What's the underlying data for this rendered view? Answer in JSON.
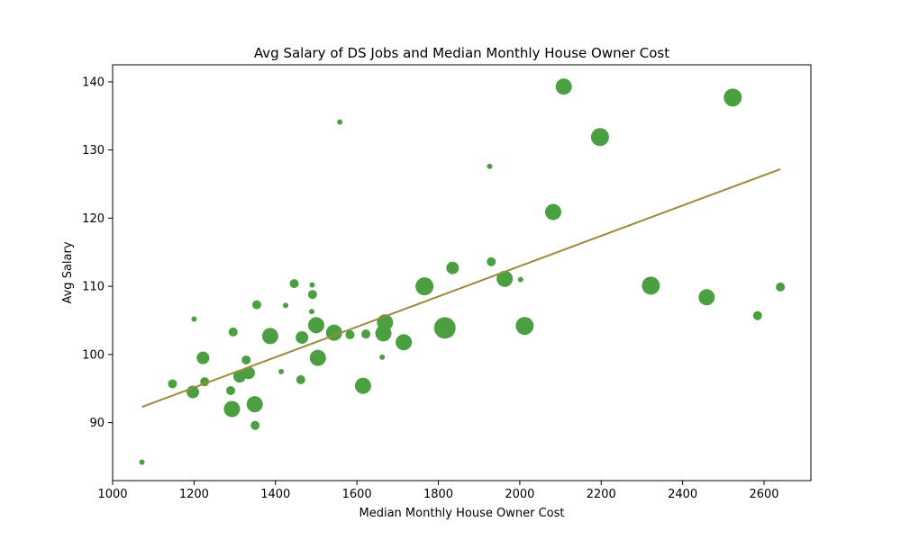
{
  "chart_data": {
    "type": "scatter",
    "title": "Avg Salary of DS Jobs and Median Monthly House Owner Cost",
    "xlabel": "Median Monthly House Owner Cost",
    "ylabel": "Avg Salary",
    "xlim": [
      1000,
      2715
    ],
    "ylim": [
      81.5,
      142.5
    ],
    "xticks": [
      "1000",
      "1200",
      "1400",
      "1600",
      "1800",
      "2000",
      "2200",
      "2400",
      "2600"
    ],
    "yticks": [
      "90",
      "100",
      "110",
      "120",
      "130",
      "140"
    ],
    "grid": false,
    "colors": {
      "points": "#4c9f41",
      "trendline": "#9b8a3c"
    },
    "points": [
      {
        "x": 1072,
        "y": 84.2,
        "size": "xs"
      },
      {
        "x": 1147,
        "y": 95.7,
        "size": "s"
      },
      {
        "x": 1197,
        "y": 94.5,
        "size": "m"
      },
      {
        "x": 1200,
        "y": 105.2,
        "size": "xs"
      },
      {
        "x": 1222,
        "y": 99.5,
        "size": "m"
      },
      {
        "x": 1226,
        "y": 96.0,
        "size": "s"
      },
      {
        "x": 1290,
        "y": 94.7,
        "size": "s"
      },
      {
        "x": 1293,
        "y": 92.0,
        "size": "l"
      },
      {
        "x": 1296,
        "y": 103.3,
        "size": "s"
      },
      {
        "x": 1312,
        "y": 96.8,
        "size": "m"
      },
      {
        "x": 1328,
        "y": 99.2,
        "size": "s"
      },
      {
        "x": 1334,
        "y": 97.3,
        "size": "m"
      },
      {
        "x": 1349,
        "y": 92.7,
        "size": "l"
      },
      {
        "x": 1350,
        "y": 89.6,
        "size": "s"
      },
      {
        "x": 1354,
        "y": 107.3,
        "size": "s"
      },
      {
        "x": 1387,
        "y": 102.7,
        "size": "l"
      },
      {
        "x": 1414,
        "y": 97.5,
        "size": "xs"
      },
      {
        "x": 1425,
        "y": 107.2,
        "size": "xs"
      },
      {
        "x": 1446,
        "y": 110.4,
        "size": "s"
      },
      {
        "x": 1462,
        "y": 96.3,
        "size": "s"
      },
      {
        "x": 1465,
        "y": 102.5,
        "size": "m"
      },
      {
        "x": 1489,
        "y": 106.3,
        "size": "xs"
      },
      {
        "x": 1490,
        "y": 110.2,
        "size": "xs"
      },
      {
        "x": 1491,
        "y": 108.8,
        "size": "s"
      },
      {
        "x": 1500,
        "y": 104.3,
        "size": "l"
      },
      {
        "x": 1504,
        "y": 99.5,
        "size": "l"
      },
      {
        "x": 1544,
        "y": 103.2,
        "size": "l"
      },
      {
        "x": 1558,
        "y": 134.1,
        "size": "xs"
      },
      {
        "x": 1583,
        "y": 102.9,
        "size": "s"
      },
      {
        "x": 1615,
        "y": 95.4,
        "size": "l"
      },
      {
        "x": 1622,
        "y": 103.0,
        "size": "s"
      },
      {
        "x": 1662,
        "y": 99.6,
        "size": "xs"
      },
      {
        "x": 1665,
        "y": 103.1,
        "size": "l"
      },
      {
        "x": 1669,
        "y": 104.7,
        "size": "l"
      },
      {
        "x": 1715,
        "y": 101.8,
        "size": "l"
      },
      {
        "x": 1766,
        "y": 110.0,
        "size": "xl"
      },
      {
        "x": 1816,
        "y": 103.9,
        "size": "xxl"
      },
      {
        "x": 1835,
        "y": 112.7,
        "size": "m"
      },
      {
        "x": 1926,
        "y": 127.6,
        "size": "xs"
      },
      {
        "x": 1930,
        "y": 113.6,
        "size": "s"
      },
      {
        "x": 1963,
        "y": 111.1,
        "size": "l"
      },
      {
        "x": 2002,
        "y": 111.0,
        "size": "xs"
      },
      {
        "x": 2012,
        "y": 104.2,
        "size": "xl"
      },
      {
        "x": 2082,
        "y": 120.9,
        "size": "l"
      },
      {
        "x": 2108,
        "y": 139.3,
        "size": "l"
      },
      {
        "x": 2197,
        "y": 131.9,
        "size": "xl"
      },
      {
        "x": 2322,
        "y": 110.1,
        "size": "xl"
      },
      {
        "x": 2459,
        "y": 108.4,
        "size": "l"
      },
      {
        "x": 2523,
        "y": 137.7,
        "size": "xl"
      },
      {
        "x": 2584,
        "y": 105.7,
        "size": "s"
      },
      {
        "x": 2640,
        "y": 109.9,
        "size": "s"
      }
    ],
    "trendline": {
      "x": [
        1072,
        2640
      ],
      "y": [
        92.3,
        127.2
      ]
    }
  }
}
